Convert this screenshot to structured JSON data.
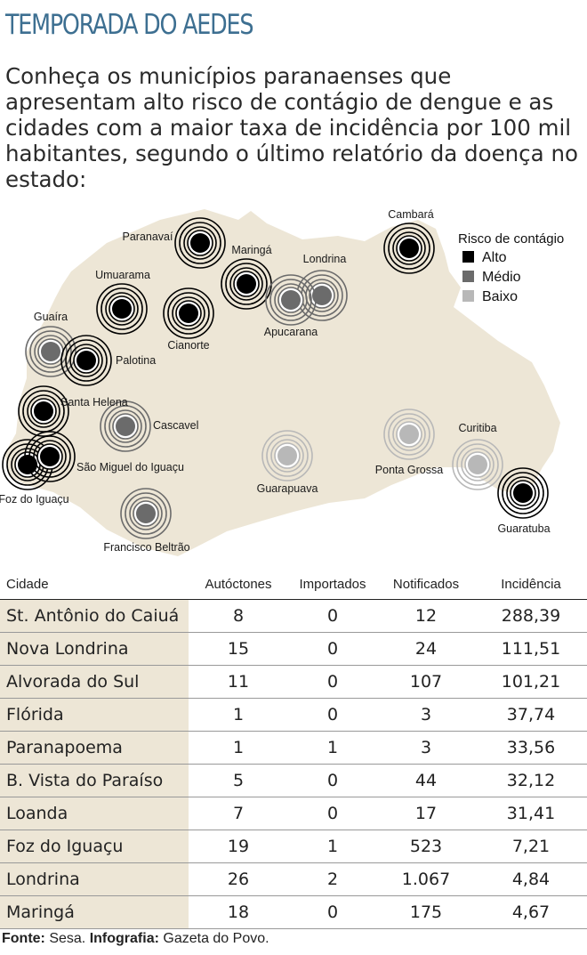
{
  "title": "TEMPORADA DO AEDES",
  "intro": "Conheça os municípios paranaenses que apresentam alto risco de contágio de dengue e as cidades com a maior taxa de incidência por 100 mil habitantes, segundo o último relatório da doença no estado:",
  "legend": {
    "title": "Risco de contágio",
    "items": [
      {
        "label": "Alto",
        "color": "#000000"
      },
      {
        "label": "Médio",
        "color": "#6b6b6b"
      },
      {
        "label": "Baixo",
        "color": "#b8b8b8"
      }
    ]
  },
  "colors": {
    "alto": "#000000",
    "medio": "#6b6b6b",
    "baixo": "#b8b8b8",
    "map_fill": "#ede6d6",
    "title": "#3d6f91"
  },
  "cities": [
    {
      "name": "Cambará",
      "risk": "alto"
    },
    {
      "name": "Paranavaí",
      "risk": "alto"
    },
    {
      "name": "Maringá",
      "risk": "alto"
    },
    {
      "name": "Londrina",
      "risk": "medio"
    },
    {
      "name": "Umuarama",
      "risk": "alto"
    },
    {
      "name": "Cianorte",
      "risk": "alto"
    },
    {
      "name": "Apucarana",
      "risk": "medio"
    },
    {
      "name": "Guaíra",
      "risk": "medio"
    },
    {
      "name": "Palotina",
      "risk": "alto"
    },
    {
      "name": "Santa Helena",
      "risk": "alto"
    },
    {
      "name": "Cascavel",
      "risk": "medio"
    },
    {
      "name": "Foz do Iguaçu",
      "risk": "alto"
    },
    {
      "name": "São Miguel do Iguaçu",
      "risk": "alto"
    },
    {
      "name": "Francisco Beltrão",
      "risk": "medio"
    },
    {
      "name": "Guarapuava",
      "risk": "baixo"
    },
    {
      "name": "Ponta Grossa",
      "risk": "baixo"
    },
    {
      "name": "Curitiba",
      "risk": "baixo"
    },
    {
      "name": "Guaratuba",
      "risk": "alto"
    }
  ],
  "table": {
    "headers": [
      "Cidade",
      "Autóctones",
      "Importados",
      "Notificados",
      "Incidência"
    ],
    "rows": [
      [
        "St. Antônio do Caiuá",
        "8",
        "0",
        "12",
        "288,39"
      ],
      [
        "Nova Londrina",
        "15",
        "0",
        "24",
        "111,51"
      ],
      [
        "Alvorada do Sul",
        "11",
        "0",
        "107",
        "101,21"
      ],
      [
        "Flórida",
        "1",
        "0",
        "3",
        "37,74"
      ],
      [
        "Paranapoema",
        "1",
        "1",
        "3",
        "33,56"
      ],
      [
        "B. Vista do Paraíso",
        "5",
        "0",
        "44",
        "32,12"
      ],
      [
        "Loanda",
        "7",
        "0",
        "17",
        "31,41"
      ],
      [
        "Foz do Iguaçu",
        "19",
        "1",
        "523",
        "7,21"
      ],
      [
        "Londrina",
        "26",
        "2",
        "1.067",
        "4,84"
      ],
      [
        "Maringá",
        "18",
        "0",
        "175",
        "4,67"
      ]
    ]
  },
  "footer": {
    "fonte_label": "Fonte:",
    "fonte": "Sesa.",
    "info_label": "Infografia:",
    "info": "Gazeta do Povo."
  }
}
